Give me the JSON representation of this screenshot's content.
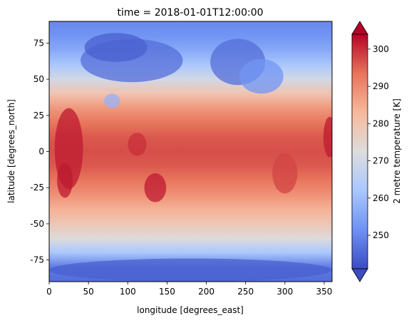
{
  "chart_data": {
    "type": "heatmap",
    "title": "time = 2018-01-01T12:00:00",
    "xlabel": "longitude [degrees_east]",
    "ylabel": "latitude [degrees_north]",
    "xlim": [
      0,
      360
    ],
    "ylim": [
      -90,
      90
    ],
    "x_ticks": [
      0,
      50,
      100,
      150,
      200,
      250,
      300,
      350
    ],
    "y_ticks": [
      -75,
      -50,
      -25,
      0,
      25,
      50,
      75
    ],
    "colorbar": {
      "label": "2 metre temperature [K]",
      "range": [
        241,
        304
      ],
      "ticks": [
        250,
        260,
        270,
        280,
        290,
        300
      ],
      "extend": "both",
      "colormap": "coolwarm",
      "colormap_stops": [
        "#3b4cc0",
        "#6f92f3",
        "#aac7fd",
        "#dddddd",
        "#f7b89c",
        "#e7745b",
        "#b40426"
      ]
    },
    "zonal_mean_temperature": {
      "latitude": [
        90,
        80,
        70,
        60,
        50,
        40,
        30,
        20,
        10,
        0,
        -10,
        -20,
        -30,
        -40,
        -50,
        -60,
        -70,
        -80,
        -90
      ],
      "values": [
        250,
        252,
        256,
        262,
        270,
        280,
        288,
        293,
        296,
        297,
        296,
        293,
        289,
        284,
        279,
        273,
        262,
        248,
        246
      ]
    }
  }
}
